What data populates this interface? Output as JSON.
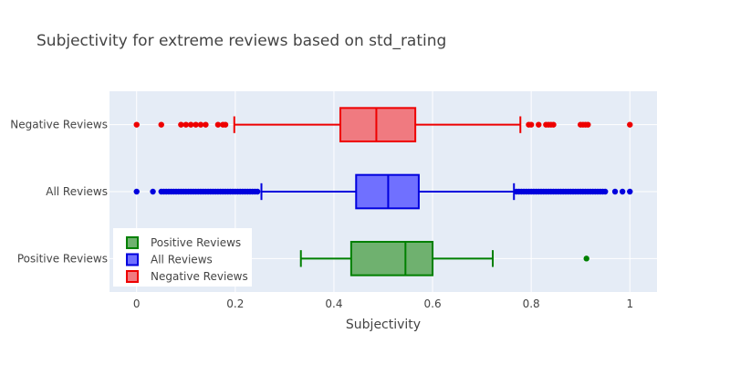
{
  "chart_data": {
    "type": "box",
    "orientation": "horizontal",
    "title": "Subjectivity for extreme reviews based on std_rating",
    "xlabel": "Subjectivity",
    "ylabel": "",
    "xlim": [
      -0.055,
      1.055
    ],
    "xticks": [
      0,
      0.2,
      0.4,
      0.6,
      0.8,
      1
    ],
    "xtick_labels": [
      "0",
      "0.2",
      "0.4",
      "0.6",
      "0.8",
      "1"
    ],
    "grid": true,
    "legend_position": "bottom-left inside",
    "categories": [
      "Negative Reviews",
      "All Reviews",
      "Positive Reviews"
    ],
    "series": [
      {
        "name": "Positive Reviews",
        "category": "Positive Reviews",
        "color": "#008000",
        "fill": "#6fb16f",
        "lowerfence": 0.333,
        "q1": 0.435,
        "median": 0.545,
        "q3": 0.6,
        "upperfence": 0.722,
        "outliers": [
          0.912
        ]
      },
      {
        "name": "All Reviews",
        "category": "All Reviews",
        "color": "#0000dd",
        "fill": "#7070ff",
        "lowerfence": 0.253,
        "q1": 0.445,
        "median": 0.51,
        "q3": 0.572,
        "upperfence": 0.765,
        "outliers": [
          0,
          0.033,
          0.05,
          0.055,
          0.06,
          0.065,
          0.07,
          0.075,
          0.08,
          0.085,
          0.09,
          0.095,
          0.1,
          0.105,
          0.11,
          0.115,
          0.12,
          0.125,
          0.13,
          0.135,
          0.14,
          0.145,
          0.15,
          0.155,
          0.16,
          0.165,
          0.17,
          0.175,
          0.18,
          0.185,
          0.19,
          0.195,
          0.2,
          0.205,
          0.21,
          0.215,
          0.22,
          0.225,
          0.23,
          0.235,
          0.24,
          0.245,
          0.77,
          0.775,
          0.78,
          0.785,
          0.79,
          0.795,
          0.8,
          0.805,
          0.81,
          0.815,
          0.82,
          0.825,
          0.83,
          0.835,
          0.84,
          0.845,
          0.85,
          0.855,
          0.86,
          0.865,
          0.87,
          0.875,
          0.88,
          0.885,
          0.89,
          0.895,
          0.9,
          0.905,
          0.91,
          0.915,
          0.92,
          0.925,
          0.93,
          0.935,
          0.94,
          0.945,
          0.95,
          0.97,
          0.985,
          1
        ]
      },
      {
        "name": "Negative Reviews",
        "category": "Negative Reviews",
        "color": "#ee0000",
        "fill": "#f07a80",
        "lowerfence": 0.198,
        "q1": 0.413,
        "median": 0.486,
        "q3": 0.565,
        "upperfence": 0.778,
        "outliers": [
          0,
          0.05,
          0.09,
          0.1,
          0.11,
          0.12,
          0.13,
          0.14,
          0.165,
          0.175,
          0.18,
          0.795,
          0.8,
          0.815,
          0.83,
          0.835,
          0.84,
          0.845,
          0.9,
          0.905,
          0.91,
          0.915,
          1
        ]
      }
    ]
  }
}
